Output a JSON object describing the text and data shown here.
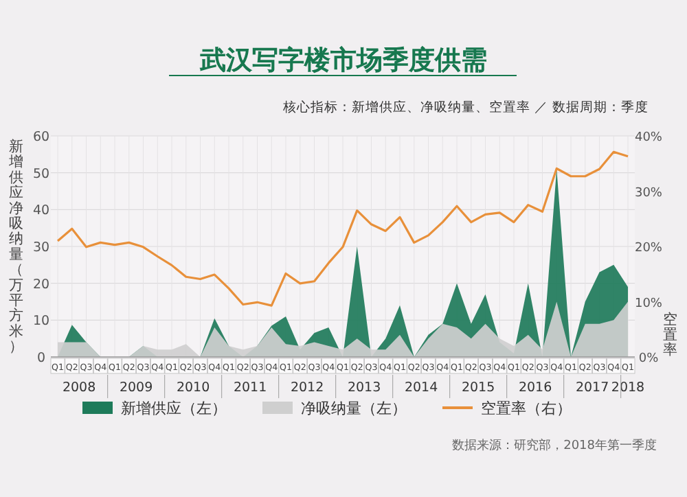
{
  "chart_data": {
    "type": "area",
    "title": "武汉写字楼市场季度供需",
    "subtitle": "核心指标：新增供应、净吸纳量、空置率 ／ 数据周期：季度",
    "ylabel": "新增供应净吸纳量（万平方米）",
    "y2label": "空置率",
    "categories": [
      "Q1",
      "Q2",
      "Q3",
      "Q4",
      "Q1",
      "Q2",
      "Q3",
      "Q4",
      "Q1",
      "Q2",
      "Q3",
      "Q4",
      "Q1",
      "Q2",
      "Q3",
      "Q4",
      "Q1",
      "Q2",
      "Q3",
      "Q4",
      "Q1",
      "Q2",
      "Q3",
      "Q4",
      "Q1",
      "Q2",
      "Q3",
      "Q4",
      "Q1",
      "Q2",
      "Q3",
      "Q4",
      "Q1",
      "Q2",
      "Q3",
      "Q4",
      "Q1",
      "Q2",
      "Q3",
      "Q4",
      "Q1"
    ],
    "x2lim": [
      2008,
      2018
    ],
    "x2ticks": [
      {
        "value": 2008.375,
        "label": "2008"
      },
      {
        "value": 2009.375,
        "label": "2009"
      },
      {
        "value": 2010.375,
        "label": "2010"
      },
      {
        "value": 2011.375,
        "label": "2011"
      },
      {
        "value": 2012.375,
        "label": "2012"
      },
      {
        "value": 2013.375,
        "label": "2013"
      },
      {
        "value": 2014.375,
        "label": "2014"
      },
      {
        "value": 2015.375,
        "label": "2015"
      },
      {
        "value": 2016.375,
        "label": "2016"
      },
      {
        "value": 2017.375,
        "label": "2017"
      },
      {
        "value": 2018,
        "label": "2018"
      }
    ],
    "series": [
      {
        "name": "新增供应（左）",
        "color": "#1e7b5a",
        "values": [
          0,
          8.7,
          4,
          0,
          0,
          0,
          3,
          0,
          0,
          0,
          0,
          10.5,
          3,
          0,
          3,
          8.5,
          11,
          2,
          6.5,
          8,
          0,
          30,
          0,
          5,
          14,
          0,
          6,
          9,
          20,
          9,
          17,
          4,
          1,
          20,
          0,
          51,
          0,
          15,
          23,
          25,
          19
        ]
      },
      {
        "name": "净吸纳量（左）",
        "color": "#cfcfcf",
        "values": [
          4,
          4,
          4,
          0,
          0,
          0,
          3,
          2,
          2,
          3.5,
          0,
          8,
          3,
          2,
          3,
          8,
          3.5,
          3,
          4,
          3,
          2,
          5,
          2,
          2,
          6,
          0,
          5,
          9,
          8,
          5,
          9,
          5,
          3,
          6,
          2,
          15,
          0,
          9,
          9,
          10,
          15
        ]
      },
      {
        "name": "空置率（右）",
        "type": "line",
        "axis": "y2",
        "color": "#e8903a",
        "values": [
          21,
          23.2,
          19.9,
          20.7,
          20.3,
          20.7,
          19.9,
          18.2,
          16.6,
          14.5,
          14.1,
          14.9,
          12.4,
          9.5,
          9.9,
          9.3,
          15.1,
          13.3,
          13.7,
          17,
          19.9,
          26.5,
          24,
          22.8,
          25.3,
          20.7,
          22,
          24.4,
          27.3,
          24.4,
          25.8,
          26.1,
          24.4,
          27.5,
          26.3,
          34.1,
          32.7,
          32.7,
          34,
          37.1,
          36.3
        ]
      }
    ],
    "ylim": [
      0,
      60
    ],
    "yticks": [
      0,
      10,
      20,
      30,
      40,
      50,
      60
    ],
    "y2lim": [
      0,
      40
    ],
    "y2ticks": [
      {
        "value": 0,
        "label": "0%"
      },
      {
        "value": 10,
        "label": "10%"
      },
      {
        "value": 20,
        "label": "20%"
      },
      {
        "value": 30,
        "label": "30%"
      },
      {
        "value": 40,
        "label": "40%"
      }
    ],
    "grid": true,
    "legend": "bottom",
    "marker": "none",
    "line_style": "solid",
    "annotations": [
      "数据来源：研究部，2018年第一季度"
    ]
  }
}
